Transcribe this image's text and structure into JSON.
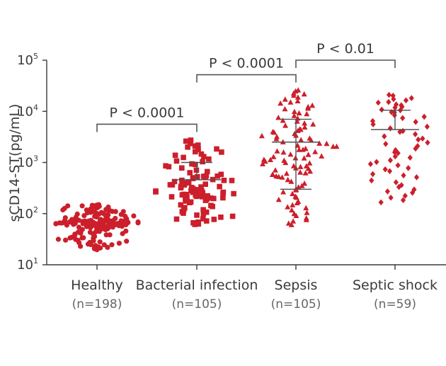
{
  "chart_data": {
    "type": "scatter",
    "subtype": "dot-plot",
    "ylabel": "sCD14-ST(pg/mL)",
    "yscale": "log",
    "ylim": [
      10,
      100000
    ],
    "yticks": [
      {
        "value": 10,
        "base": "10",
        "exp": "1"
      },
      {
        "value": 100,
        "base": "10",
        "exp": "2"
      },
      {
        "value": 1000,
        "base": "10",
        "exp": "3"
      },
      {
        "value": 10000,
        "base": "10",
        "exp": "4"
      },
      {
        "value": 100000,
        "base": "10",
        "exp": "5"
      }
    ],
    "colors": {
      "points": "#cc1f2b",
      "axis": "#3a3a3a",
      "errorbar": "#505050"
    },
    "groups": [
      {
        "name": "Healthy",
        "n_label": "(n=198)",
        "n": 198,
        "marker": "circle",
        "min": 20,
        "max": 150,
        "median": 65,
        "q1": 55,
        "q3": 75,
        "mean": null,
        "sd_low": null,
        "sd_high": null,
        "spread": 0.095
      },
      {
        "name": "Bacterial infection",
        "n_label": "(n=105)",
        "n": 105,
        "marker": "square",
        "min": 60,
        "max": 2700,
        "median": 290,
        "q1": 190,
        "q3": 560,
        "mean": 460,
        "sd_low": 460,
        "sd_high": 1000,
        "spread": 0.11
      },
      {
        "name": "Sepsis",
        "n_label": "(n=105)",
        "n": 105,
        "marker": "triangle",
        "min": 60,
        "max": 26000,
        "median": 1400,
        "q1": 500,
        "q3": 4500,
        "mean": 2500,
        "sd_low": 300,
        "sd_high": 7000,
        "spread": 0.11
      },
      {
        "name": "Septic shock",
        "n_label": "(n=59)",
        "n": 59,
        "marker": "diamond",
        "min": 170,
        "max": 21000,
        "median": 2500,
        "q1": 700,
        "q3": 9000,
        "mean": 4400,
        "sd_low": 4400,
        "sd_high": 10500,
        "spread": 0.12
      }
    ],
    "annotations": [
      {
        "label": "P < 0.0001",
        "from": "Healthy",
        "to": "Bacterial infection",
        "y": 5600
      },
      {
        "label": "P < 0.0001",
        "from": "Bacterial infection",
        "to": "Sepsis",
        "y": 52000
      },
      {
        "label": "P < 0.01",
        "from": "Sepsis",
        "to": "Septic shock",
        "y": 100000
      }
    ]
  }
}
